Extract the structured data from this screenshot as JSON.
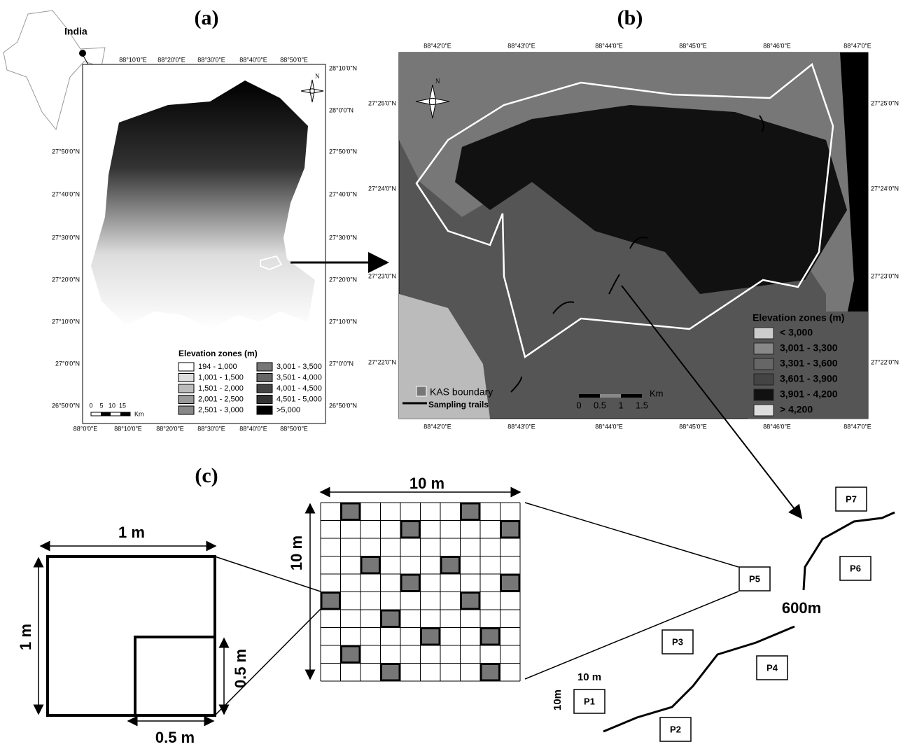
{
  "panel_a": {
    "label": "(a)",
    "inset_label": "India",
    "north": "N",
    "top_lon": [
      "88°10'0\"E",
      "88°20'0\"E",
      "88°30'0\"E",
      "88°40'0\"E",
      "88°50'0\"E"
    ],
    "bottom_lon": [
      "88°0'0\"E",
      "88°10'0\"E",
      "88°20'0\"E",
      "88°30'0\"E",
      "88°40'0\"E",
      "88°50'0\"E"
    ],
    "left_lat": [
      "27°50'0\"N",
      "27°40'0\"N",
      "27°30'0\"N",
      "27°20'0\"N",
      "27°10'0\"N",
      "27°0'0\"N",
      "26°50'0\"N"
    ],
    "right_lat": [
      "28°10'0\"N",
      "28°0'0\"N",
      "27°50'0\"N",
      "27°40'0\"N",
      "27°30'0\"N",
      "27°20'0\"N",
      "27°10'0\"N",
      "27°0'0\"N",
      "26°50'0\"N"
    ],
    "legend_title": "Elevation zones (m)",
    "legend": [
      "194 - 1,000",
      "1,001 - 1,500",
      "1,501 - 2,000",
      "2,001 - 2,500",
      "2,501 - 3,000",
      "3,001 - 3,500",
      "3,501 - 4,000",
      "4,001 - 4,500",
      "4,501 - 5,000",
      ">5,000"
    ],
    "scale": [
      "0",
      "5",
      "10",
      "15",
      "Km"
    ]
  },
  "panel_b": {
    "label": "(b)",
    "top_lon": [
      "88°42'0\"E",
      "88°43'0\"E",
      "88°44'0\"E",
      "88°45'0\"E",
      "88°46'0\"E",
      "88°47'0\"E"
    ],
    "bottom_lon": [
      "88°42'0\"E",
      "88°43'0\"E",
      "88°44'0\"E",
      "88°45'0\"E",
      "88°46'0\"E",
      "88°47'0\"E"
    ],
    "left_lat": [
      "27°25'0\"N",
      "27°24'0\"N",
      "27°23'0\"N",
      "27°22'0\"N"
    ],
    "right_lat": [
      "27°25'0\"N",
      "27°24'0\"N",
      "27°23'0\"N",
      "27°22'0\"N"
    ],
    "north": "N",
    "legend_title": "Elevation zones (m)",
    "legend": [
      "< 3,000",
      "3,001 - 3,300",
      "3,301 - 3,600",
      "3,601 - 3,900",
      "3,901 - 4,200",
      "> 4,200"
    ],
    "boundary": "KAS boundary",
    "trails": "Sampling trails",
    "scale": [
      "0",
      "0.5",
      "1",
      "1.5",
      "Km"
    ]
  },
  "panel_c": {
    "label": "(c)",
    "quadrat_top": "1 m",
    "quadrat_left": "1 m",
    "sub_right": "0.5 m",
    "sub_bottom": "0.5 m",
    "grid_top": "10 m",
    "grid_left": "10 m",
    "plots": [
      "P1",
      "P2",
      "P3",
      "P4",
      "P5",
      "P6",
      "P7"
    ],
    "trail_length": "600m",
    "plot_width": "10 m",
    "plot_height": "10m"
  }
}
